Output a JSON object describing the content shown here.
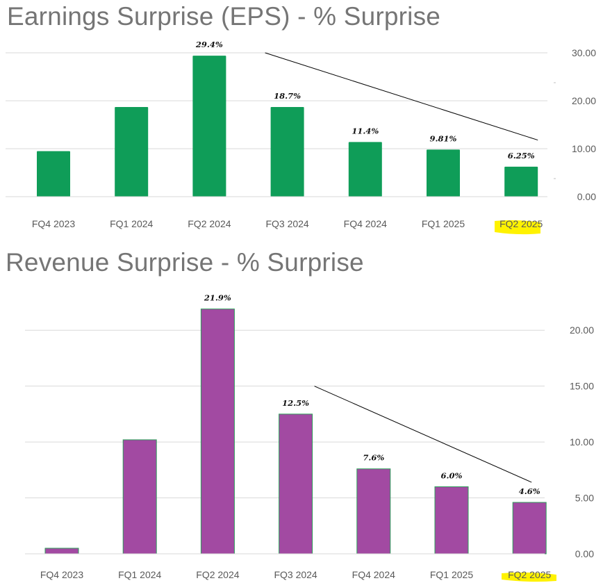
{
  "colors": {
    "eps_bar": "#0f9d58",
    "revenue_bar": "#a24aa2",
    "revenue_bar_outline": "#2e9e5a",
    "highlight": "#fff200",
    "gridline": "#d9d9d9",
    "trend_line": "#000000"
  },
  "chart_data": [
    {
      "id": "eps",
      "type": "bar",
      "title": "Earnings Surprise (EPS) - % Surprise",
      "xlabel": "",
      "ylabel": "",
      "categories": [
        "FQ4 2023",
        "FQ1 2024",
        "FQ2 2024",
        "FQ3 2024",
        "FQ4 2024",
        "FQ1 2025",
        "FQ2 2025"
      ],
      "values": [
        9.5,
        18.7,
        29.4,
        18.7,
        11.4,
        9.81,
        6.25
      ],
      "data_labels": [
        "",
        "",
        "29.4%",
        "18.7%",
        "11.4%",
        "9.81%",
        "6.25%"
      ],
      "ylim": [
        0,
        30
      ],
      "yticks": [
        "0.00",
        "10.00",
        "20.00",
        "30.00"
      ],
      "ytick_values": [
        0,
        10,
        20,
        30
      ],
      "highlighted_category": "FQ2 2025",
      "trend_line": {
        "from": {
          "category": "FQ3 2024",
          "value": 30
        },
        "to": {
          "category": "FQ2 2025",
          "value": 11.8
        }
      },
      "grid": true
    },
    {
      "id": "revenue",
      "type": "bar",
      "title": "Revenue Surprise - % Surprise",
      "xlabel": "",
      "ylabel": "",
      "categories": [
        "FQ4 2023",
        "FQ1 2024",
        "FQ2 2024",
        "FQ3 2024",
        "FQ4 2024",
        "FQ1 2025",
        "FQ2 2025"
      ],
      "values": [
        0.5,
        10.2,
        21.9,
        12.5,
        7.6,
        6.0,
        4.6
      ],
      "data_labels": [
        "",
        "",
        "21.9%",
        "12.5%",
        "7.6%",
        "6.0%",
        "4.6%"
      ],
      "ylim": [
        0,
        22.5
      ],
      "yticks": [
        "0.00",
        "5.00",
        "10.00",
        "15.00",
        "20.00"
      ],
      "ytick_values": [
        0,
        5,
        10,
        15,
        20
      ],
      "highlighted_category": "FQ2 2025",
      "trend_line": {
        "from": {
          "category": "FQ3 2024",
          "value": 15.0
        },
        "to": {
          "category": "FQ2 2025",
          "value": 6.4
        }
      },
      "grid": true
    }
  ]
}
